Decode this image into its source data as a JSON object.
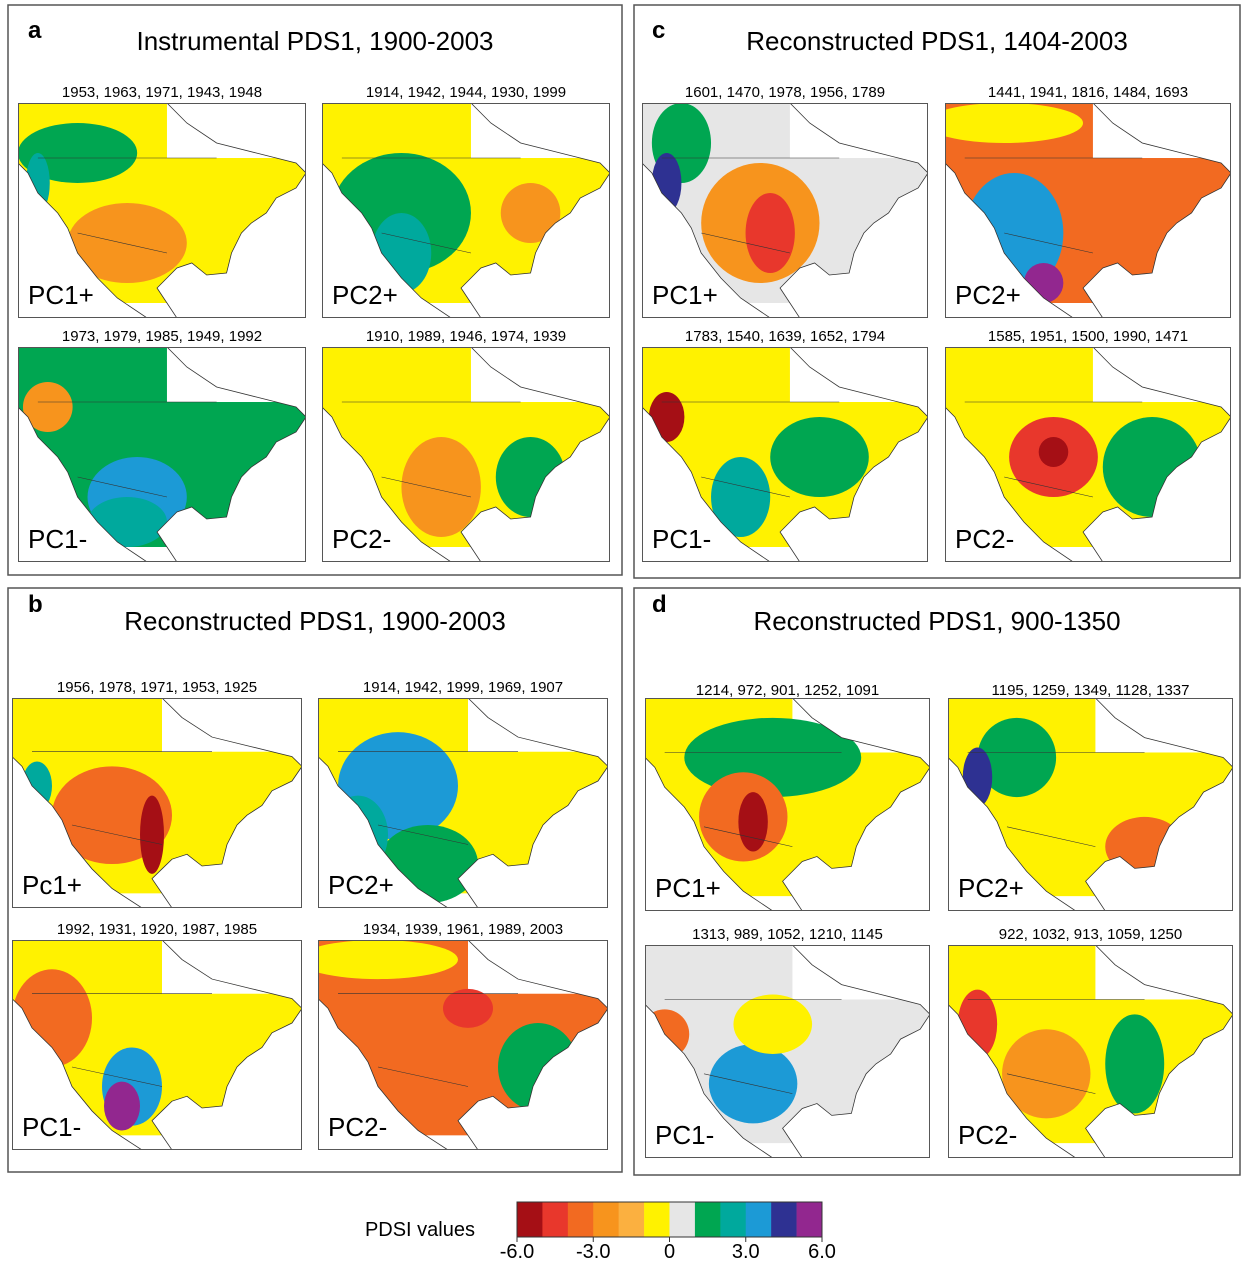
{
  "panels": [
    {
      "letter": "a",
      "title": "Instrumental PDS1, 1900-2003",
      "maps": [
        {
          "years": "1953, 1963, 1971, 1943, 1948",
          "label": "PC1+"
        },
        {
          "years": "1914, 1942, 1944, 1930, 1999",
          "label": "PC2+"
        },
        {
          "years": "1973, 1979, 1985, 1949, 1992",
          "label": "PC1-"
        },
        {
          "years": "1910, 1989, 1946, 1974, 1939",
          "label": "PC2-"
        }
      ]
    },
    {
      "letter": "c",
      "title": "Reconstructed PDS1, 1404-2003",
      "maps": [
        {
          "years": "1601, 1470, 1978, 1956, 1789",
          "label": "PC1+"
        },
        {
          "years": "1441, 1941, 1816, 1484, 1693",
          "label": "PC2+"
        },
        {
          "years": "1783, 1540, 1639, 1652, 1794",
          "label": "PC1-"
        },
        {
          "years": "1585, 1951, 1500, 1990, 1471",
          "label": "PC2-"
        }
      ]
    },
    {
      "letter": "b",
      "title": "Reconstructed PDS1, 1900-2003",
      "maps": [
        {
          "years": "1956, 1978, 1971, 1953, 1925",
          "label": "Pc1+"
        },
        {
          "years": "1914, 1942, 1999, 1969, 1907",
          "label": "PC2+"
        },
        {
          "years": "1992, 1931, 1920, 1987, 1985",
          "label": "PC1-"
        },
        {
          "years": "1934, 1939, 1961, 1989, 2003",
          "label": "PC2-"
        }
      ]
    },
    {
      "letter": "d",
      "title": "Reconstructed PDS1, 900-1350",
      "maps": [
        {
          "years": "1214, 972, 901, 1252, 1091",
          "label": "PC1+"
        },
        {
          "years": "1195, 1259, 1349, 1128, 1337",
          "label": "PC2+"
        },
        {
          "years": "1313, 989, 1052, 1210, 1145",
          "label": "PC1-"
        },
        {
          "years": "922, 1032, 913, 1059, 1250",
          "label": "PC2-"
        }
      ]
    }
  ],
  "legend": {
    "label": "PDSI values",
    "colors": [
      "#a50f15",
      "#e8372c",
      "#f26a21",
      "#f7941d",
      "#fbb040",
      "#fff200",
      "#e6e6e6",
      "#00a651",
      "#00a99d",
      "#1c9ad6",
      "#2e3192",
      "#92278f"
    ],
    "range": [
      -6,
      6
    ],
    "ticks": [
      {
        "value": -6,
        "label": "-6.0"
      },
      {
        "value": -3,
        "label": "-3.0"
      },
      0,
      {
        "value": 3,
        "label": "3.0"
      },
      {
        "value": 6,
        "label": "6.0"
      }
    ]
  }
}
